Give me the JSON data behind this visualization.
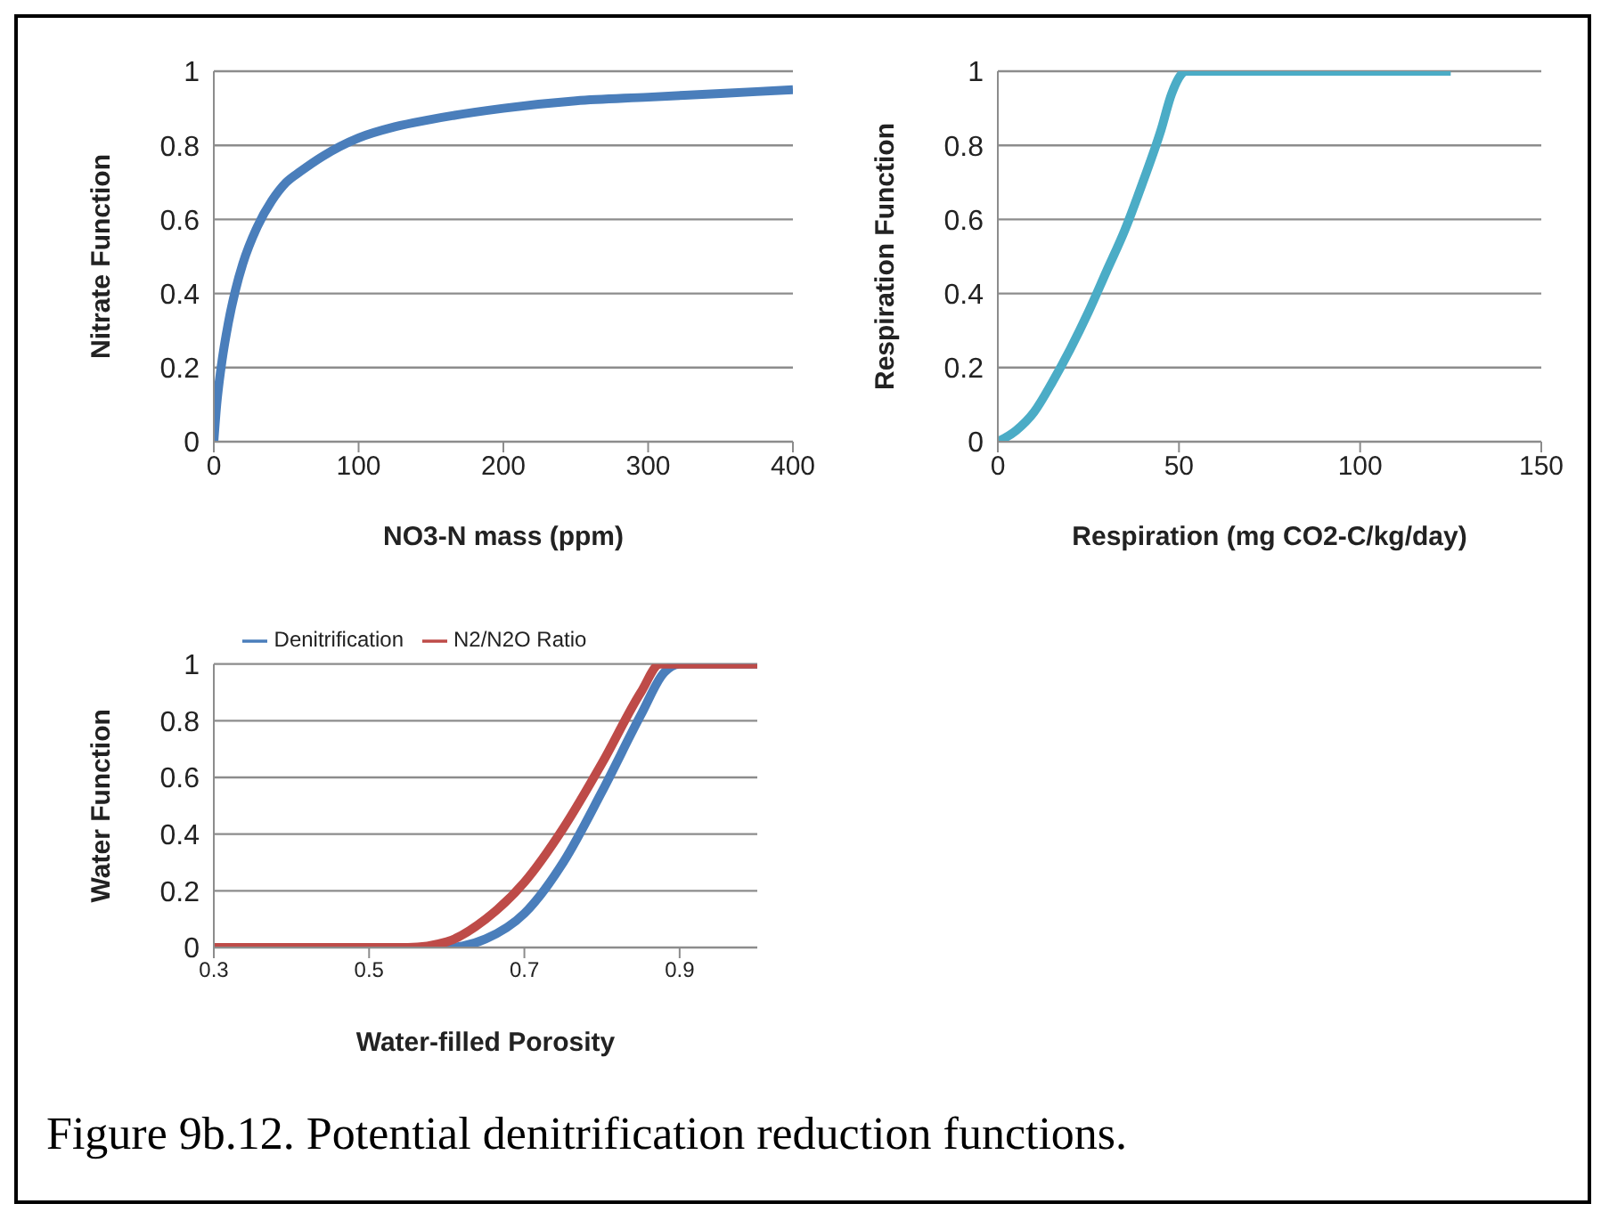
{
  "chart_data": [
    {
      "type": "line",
      "xlabel": "NO3-N mass (ppm)",
      "ylabel": "Nitrate Function",
      "x": [
        0,
        2,
        5,
        10,
        15,
        20,
        30,
        40,
        50,
        60,
        75,
        100,
        125,
        150,
        200,
        250,
        300,
        350,
        400
      ],
      "series": [
        {
          "color": "#4a7ebb",
          "values": [
            0,
            0.1,
            0.2,
            0.32,
            0.41,
            0.48,
            0.58,
            0.65,
            0.7,
            0.73,
            0.77,
            0.82,
            0.85,
            0.87,
            0.9,
            0.92,
            0.93,
            0.94,
            0.95
          ]
        }
      ],
      "xlim": [
        0,
        400
      ],
      "xticks": [
        0,
        100,
        200,
        300,
        400
      ],
      "ylim": [
        0,
        1
      ],
      "yticks": [
        0,
        0.2,
        0.4,
        0.6,
        0.8,
        1
      ],
      "grid": "y",
      "marker": "none",
      "line_style": "solid"
    },
    {
      "type": "line",
      "xlabel": "Respiration (mg CO2-C/kg/day)",
      "ylabel": "Respiration Function",
      "x": [
        0,
        5,
        10,
        15,
        20,
        25,
        30,
        35,
        40,
        45,
        48,
        52,
        125
      ],
      "series": [
        {
          "color": "#4bacc6",
          "values": [
            0,
            0.03,
            0.08,
            0.16,
            0.25,
            0.35,
            0.46,
            0.57,
            0.7,
            0.84,
            0.94,
            1,
            1
          ]
        }
      ],
      "xlim": [
        0,
        150
      ],
      "xticks": [
        0,
        50,
        100,
        150
      ],
      "ylim": [
        0,
        1
      ],
      "yticks": [
        0,
        0.2,
        0.4,
        0.6,
        0.8,
        1
      ],
      "grid": "y",
      "marker": "none",
      "line_style": "solid"
    },
    {
      "type": "line",
      "xlabel": "Water-filled Porosity",
      "ylabel": "Water Function",
      "series": [
        {
          "name": "Denitrification",
          "color": "#4a7ebb",
          "x": [
            0.3,
            0.6,
            0.62,
            0.65,
            0.7,
            0.75,
            0.8,
            0.85,
            0.88,
            0.9,
            1
          ],
          "values": [
            0,
            0,
            0.005,
            0.03,
            0.12,
            0.3,
            0.55,
            0.82,
            0.97,
            1,
            1
          ]
        },
        {
          "name": "N2/N2O Ratio",
          "color": "#be4b48",
          "x": [
            0.3,
            0.55,
            0.6,
            0.65,
            0.7,
            0.75,
            0.8,
            0.85,
            0.875,
            1
          ],
          "values": [
            0,
            0,
            0.02,
            0.1,
            0.23,
            0.42,
            0.65,
            0.9,
            1,
            1
          ]
        }
      ],
      "xlim": [
        0.3,
        1
      ],
      "xticks": [
        0.3,
        0.5,
        0.7,
        0.9
      ],
      "ylim": [
        0,
        1
      ],
      "yticks": [
        0,
        0.2,
        0.4,
        0.6,
        0.8,
        1
      ],
      "grid": "y",
      "legend": "top",
      "marker": "none",
      "line_style": "solid",
      "annotations": [
        "Figure 9b.12. Potential denitrification reduction functions."
      ]
    }
  ]
}
